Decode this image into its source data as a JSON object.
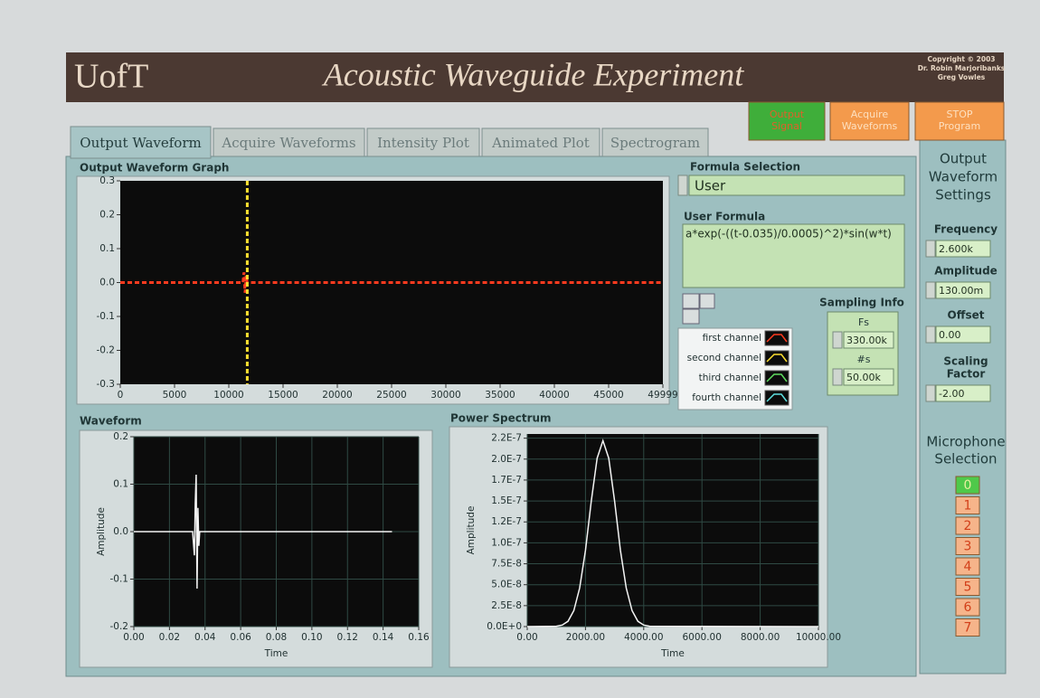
{
  "header": {
    "logo": "UofT",
    "title": "Acoustic Waveguide Experiment",
    "copyright": [
      "Copyright © 2003",
      "Dr. Robin Marjoribanks",
      "Greg Vowles"
    ]
  },
  "buttons": [
    [
      "Output",
      "Signal"
    ],
    [
      "Acquire",
      "Waveforms"
    ],
    [
      "STOP",
      "Program"
    ]
  ],
  "tabs": [
    "Output Waveform",
    "Acquire Waveforms",
    "Intensity Plot",
    "Animated Plot",
    "Spectrogram"
  ],
  "formula_selection": {
    "label": "Formula Selection",
    "value": "User"
  },
  "user_formula": {
    "label": "User Formula",
    "value": "a*exp(-((t-0.035)/0.0005)^2)*sin(w*t)"
  },
  "sampling_info": {
    "label": "Sampling Info",
    "fs_label": "Fs",
    "fs": "330.00k",
    "ns_label": "#s",
    "ns": "50.00k"
  },
  "settings": {
    "title": [
      "Output",
      "Waveform",
      "Settings"
    ],
    "fields": [
      {
        "label": [
          "Frequency"
        ],
        "value": "2.600k"
      },
      {
        "label": [
          "Amplitude"
        ],
        "value": "130.00m"
      },
      {
        "label": [
          "Offset"
        ],
        "value": "0.00"
      },
      {
        "label": [
          "Scaling",
          "Factor"
        ],
        "value": "-2.00"
      }
    ]
  },
  "microphone": {
    "title": [
      "Microphone",
      "Selection"
    ],
    "options": [
      "0",
      "1",
      "2",
      "3",
      "4",
      "5",
      "6",
      "7"
    ],
    "selected": 0
  },
  "chart_data": [
    {
      "type": "line",
      "title": "Output Waveform Graph",
      "grid": false,
      "line_style": "dashed",
      "xlim": [
        0,
        49999
      ],
      "xticks": [
        0,
        5000,
        10000,
        15000,
        20000,
        25000,
        30000,
        35000,
        40000,
        45000,
        49999
      ],
      "ylim": [
        -0.3,
        0.3
      ],
      "yticks": [
        -0.3,
        -0.2,
        -0.1,
        {
          "value": 0,
          "label": "0.0"
        },
        0.1,
        0.2,
        0.3
      ],
      "series": [
        {
          "name": "first channel",
          "color": "#ff3b1f",
          "x": [
            0,
            11300,
            11400,
            11500,
            11600,
            11700,
            49999
          ],
          "values": [
            0,
            0,
            0.03,
            -0.03,
            0.02,
            0,
            0
          ]
        },
        {
          "name": "second channel",
          "color": "#ffe030",
          "x": [
            11700,
            11700
          ],
          "values": [
            0.3,
            -0.3
          ]
        },
        {
          "name": "third channel",
          "color": "#5fdc5f",
          "x": [],
          "values": []
        },
        {
          "name": "fourth channel",
          "color": "#5fe0e0",
          "x": [],
          "values": []
        }
      ]
    },
    {
      "type": "line",
      "title": "Waveform",
      "xlabel": "Time",
      "ylabel": "Amplitude",
      "grid": true,
      "xlim": [
        0,
        0.16
      ],
      "xticks": [
        {
          "value": 0,
          "label": "0.00"
        },
        {
          "value": 0.02,
          "label": "0.02"
        },
        {
          "value": 0.04,
          "label": "0.04"
        },
        {
          "value": 0.06,
          "label": "0.06"
        },
        {
          "value": 0.08,
          "label": "0.08"
        },
        {
          "value": 0.1,
          "label": "0.10"
        },
        {
          "value": 0.12,
          "label": "0.12"
        },
        {
          "value": 0.14,
          "label": "0.14"
        },
        {
          "value": 0.16,
          "label": "0.16"
        }
      ],
      "ylim": [
        -0.2,
        0.2
      ],
      "yticks": [
        -0.2,
        -0.1,
        {
          "value": 0,
          "label": "0.0"
        },
        0.1,
        0.2
      ],
      "series": [
        {
          "name": null,
          "color": "#f4f4f4",
          "x": [
            0,
            0.033,
            0.034,
            0.0345,
            0.035,
            0.0355,
            0.036,
            0.0365,
            0.037,
            0.145
          ],
          "values": [
            0,
            0,
            -0.05,
            0.06,
            0.12,
            -0.12,
            0.05,
            -0.03,
            0,
            0
          ]
        }
      ]
    },
    {
      "type": "line",
      "title": "Power Spectrum",
      "xlabel": "Time",
      "ylabel": "Amplitude",
      "grid": true,
      "xlim": [
        0,
        10000
      ],
      "xticks": [
        {
          "value": 0,
          "label": "0.00"
        },
        {
          "value": 2000,
          "label": "2000.00"
        },
        {
          "value": 4000,
          "label": "4000.00"
        },
        {
          "value": 6000,
          "label": "6000.00"
        },
        {
          "value": 8000,
          "label": "8000.00"
        },
        {
          "value": 10000,
          "label": "10000.00"
        }
      ],
      "ylim": [
        0,
        2.3e-07
      ],
      "yticks": [
        {
          "value": 0,
          "label": "0.0E+0"
        },
        {
          "value": 2.5e-08,
          "label": "2.5E-8"
        },
        {
          "value": 5e-08,
          "label": "5.0E-8"
        },
        {
          "value": 7.5e-08,
          "label": "7.5E-8"
        },
        {
          "value": 1e-07,
          "label": "1.0E-7"
        },
        {
          "value": 1.25e-07,
          "label": "1.2E-7"
        },
        {
          "value": 1.5e-07,
          "label": "1.5E-7"
        },
        {
          "value": 1.75e-07,
          "label": "1.7E-7"
        },
        {
          "value": 2e-07,
          "label": "2.0E-7"
        },
        {
          "value": 2.25e-07,
          "label": "2.2E-7"
        }
      ],
      "series": [
        {
          "name": null,
          "color": "#f4f4f4",
          "x": [
            0,
            1000,
            1200,
            1400,
            1600,
            1800,
            2000,
            2200,
            2400,
            2600,
            2800,
            3000,
            3200,
            3400,
            3600,
            3800,
            4000,
            4200,
            10000
          ],
          "values": [
            0,
            4e-10,
            1.8e-09,
            6.3e-09,
            1.9e-08,
            4.6e-08,
            9.1e-08,
            1.5e-07,
            2.01e-07,
            2.22e-07,
            2.01e-07,
            1.5e-07,
            9.1e-08,
            4.6e-08,
            1.9e-08,
            6.3e-09,
            1.8e-09,
            4e-10,
            0
          ]
        }
      ]
    }
  ]
}
